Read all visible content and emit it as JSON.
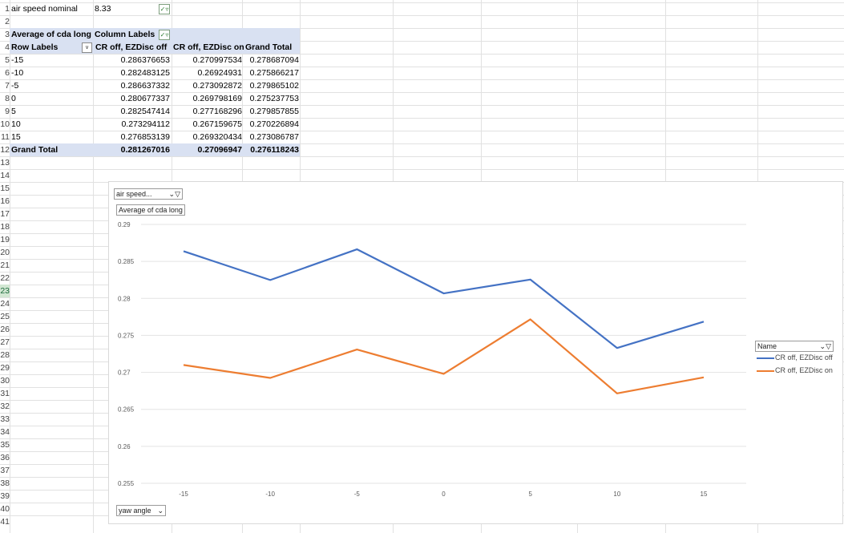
{
  "sheet": {
    "row_numbers": [
      "1",
      "2",
      "3",
      "4",
      "5",
      "6",
      "7",
      "8",
      "9",
      "10",
      "11",
      "12",
      "13",
      "14",
      "15",
      "16",
      "17",
      "18",
      "19",
      "20",
      "21",
      "22",
      "23",
      "24",
      "25",
      "26",
      "27",
      "28",
      "29",
      "30",
      "31",
      "32",
      "33",
      "34",
      "35",
      "36",
      "37",
      "38",
      "39",
      "40",
      "41"
    ],
    "selected_row": "23"
  },
  "filter": {
    "label": "air speed nominal",
    "value": "8.33"
  },
  "pivot": {
    "corner": "Average of cda long",
    "column_labels": "Column Labels",
    "row_labels": "Row Labels",
    "headers": [
      "CR off, EZDisc off",
      "CR off, EZDisc on",
      "Grand Total"
    ],
    "rows": [
      {
        "label": "-15",
        "v1": "0.286376653",
        "v2": "0.270997534",
        "v3": "0.278687094"
      },
      {
        "label": "-10",
        "v1": "0.282483125",
        "v2": "0.26924931",
        "v3": "0.275866217"
      },
      {
        "label": "-5",
        "v1": "0.286637332",
        "v2": "0.273092872",
        "v3": "0.279865102"
      },
      {
        "label": "0",
        "v1": "0.280677337",
        "v2": "0.269798169",
        "v3": "0.275237753"
      },
      {
        "label": "5",
        "v1": "0.282547414",
        "v2": "0.277168296",
        "v3": "0.279857855"
      },
      {
        "label": "10",
        "v1": "0.273294112",
        "v2": "0.267159675",
        "v3": "0.270226894"
      },
      {
        "label": "15",
        "v1": "0.276853139",
        "v2": "0.269320434",
        "v3": "0.273086787"
      }
    ],
    "total": {
      "label": "Grand Total",
      "v1": "0.281267016",
      "v2": "0.27096947",
      "v3": "0.276118243"
    }
  },
  "chart": {
    "filter_button": "air speed...",
    "value_button": "Average of cda long",
    "axis_button": "yaw angle",
    "legend_button": "Name"
  },
  "chart_data": {
    "type": "line",
    "categories": [
      "-15",
      "-10",
      "-5",
      "0",
      "5",
      "10",
      "15"
    ],
    "series": [
      {
        "name": "CR off, EZDisc off",
        "color": "#4472c4",
        "values": [
          0.286376653,
          0.282483125,
          0.286637332,
          0.280677337,
          0.282547414,
          0.273294112,
          0.276853139
        ]
      },
      {
        "name": "CR off, EZDisc on",
        "color": "#ed7d31",
        "values": [
          0.270997534,
          0.26924931,
          0.273092872,
          0.269798169,
          0.277168296,
          0.267159675,
          0.269320434
        ]
      }
    ],
    "yticks": [
      "0.29",
      "0.285",
      "0.28",
      "0.275",
      "0.27",
      "0.265",
      "0.26",
      "0.255"
    ],
    "ylim": [
      0.255,
      0.29
    ],
    "grid": true,
    "legend": "right"
  },
  "colors": {
    "header_band": "#d9e1f2",
    "series1": "#4472c4",
    "series2": "#ed7d31"
  }
}
